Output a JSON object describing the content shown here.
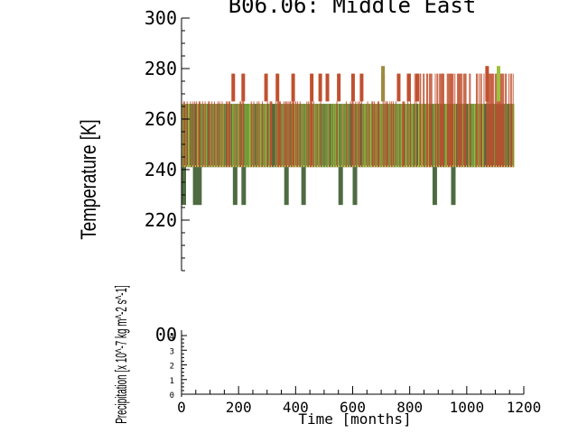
{
  "chart_data": {
    "type": "bar",
    "title": "B06.06: Middle East",
    "xlabel": "Time [months]",
    "ylabel_top": "Temperature [K]",
    "ylabel_bottom": "Precipitation [x 10^-7 kg m^-2 s^-1]",
    "xlim": [
      0,
      1200
    ],
    "ylim_top": [
      200,
      300
    ],
    "ylim_bottom": [
      0,
      4
    ],
    "x_ticks": [
      "0",
      "200",
      "400",
      "600",
      "800",
      "1000",
      "1200"
    ],
    "y_ticks_top": [
      "220",
      "240",
      "260",
      "280",
      "300"
    ],
    "y_ticks_bottom": [
      "0",
      "1",
      "2",
      "3",
      "4"
    ],
    "series": [
      {
        "color": "#c0502f",
        "values_description": "",
        "top_band": [
          267,
          278
        ],
        "floor": 241
      },
      {
        "color": "#a08a3e",
        "top_band": [
          266,
          281
        ],
        "floor": 241
      },
      {
        "color": "#4e6b41",
        "top_band": [
          266,
          266
        ],
        "floor": 226
      },
      {
        "color": "#9cc23b",
        "top_band": [
          262,
          266
        ],
        "floor": 241
      }
    ],
    "dip_months": [
      0,
      40,
      55,
      180,
      210,
      360,
      420,
      550,
      600,
      880,
      945
    ],
    "high_months": [
      175,
      210,
      290,
      330,
      385,
      450,
      480,
      505,
      545,
      595,
      625,
      700,
      755,
      790,
      820
    ],
    "grid": false,
    "legend": "none"
  }
}
